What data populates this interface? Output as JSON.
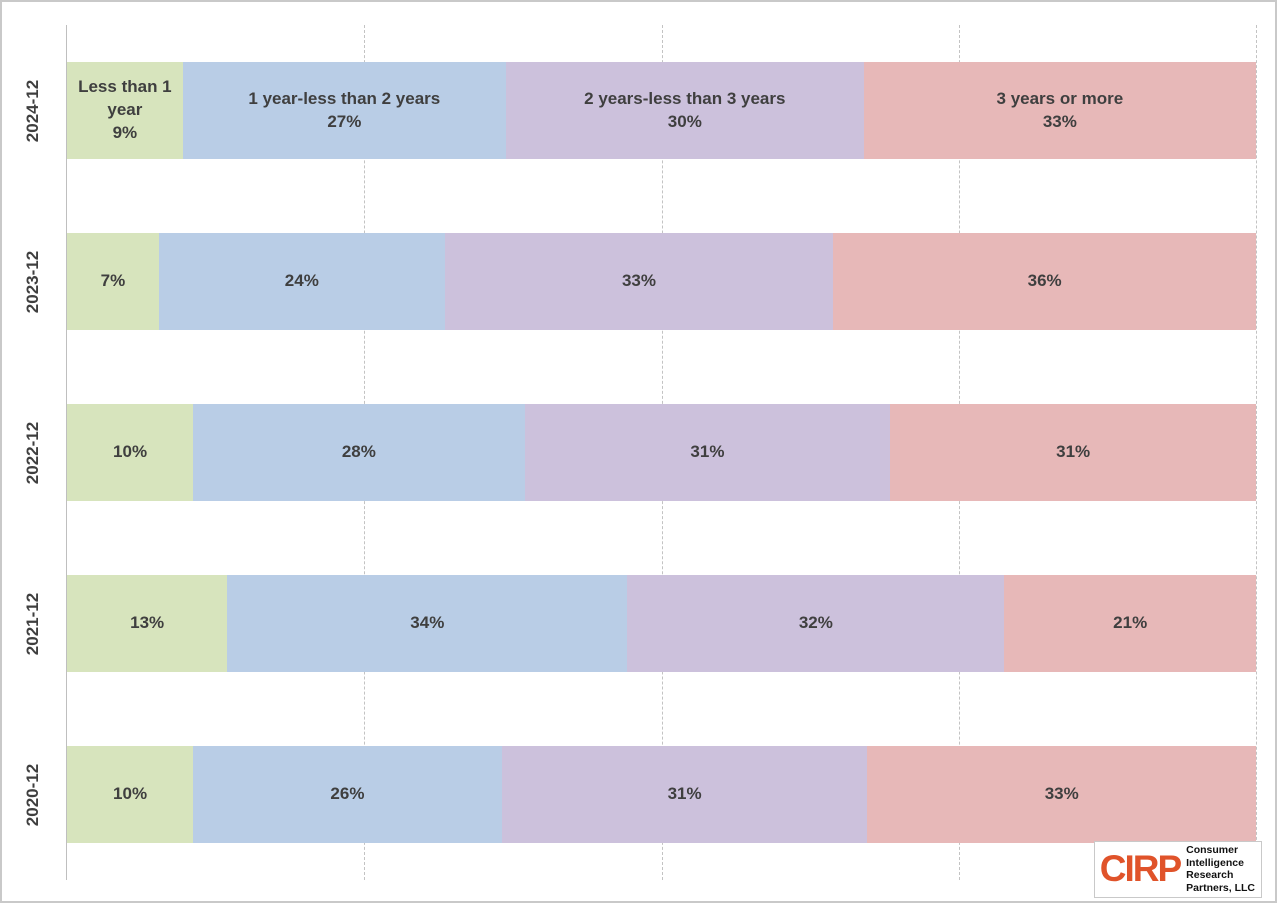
{
  "chart_data": {
    "type": "bar",
    "subtype": "stacked-100-horizontal",
    "categories": [
      "2024-12",
      "2023-12",
      "2022-12",
      "2021-12",
      "2020-12"
    ],
    "series": [
      {
        "name": "Less than 1 year",
        "color": "#d7e4bd",
        "values": [
          9,
          7,
          10,
          13,
          10
        ]
      },
      {
        "name": "1 year-less than 2 years",
        "color": "#b9cde6",
        "values": [
          27,
          24,
          28,
          34,
          26
        ]
      },
      {
        "name": "2 years-less than 3 years",
        "color": "#ccc1dc",
        "values": [
          30,
          33,
          31,
          32,
          31
        ]
      },
      {
        "name": "3 years or more",
        "color": "#e7b8b8",
        "values": [
          33,
          36,
          31,
          21,
          33
        ]
      }
    ],
    "value_suffix": "%",
    "series_names_shown_on_first_row_only": true,
    "xlim": [
      0,
      100
    ],
    "gridlines_percent": [
      25,
      50,
      75,
      100
    ],
    "gridline_style": "dashed",
    "axis_line_color": "#bfbfbf",
    "label_text_color": "#3f3f3f",
    "title": "",
    "xlabel": "",
    "ylabel": ""
  },
  "logo": {
    "brand": "CIRP",
    "brand_color": "#e0532a",
    "lines": [
      "Consumer",
      "Intelligence",
      "Research",
      "Partners, LLC"
    ]
  }
}
